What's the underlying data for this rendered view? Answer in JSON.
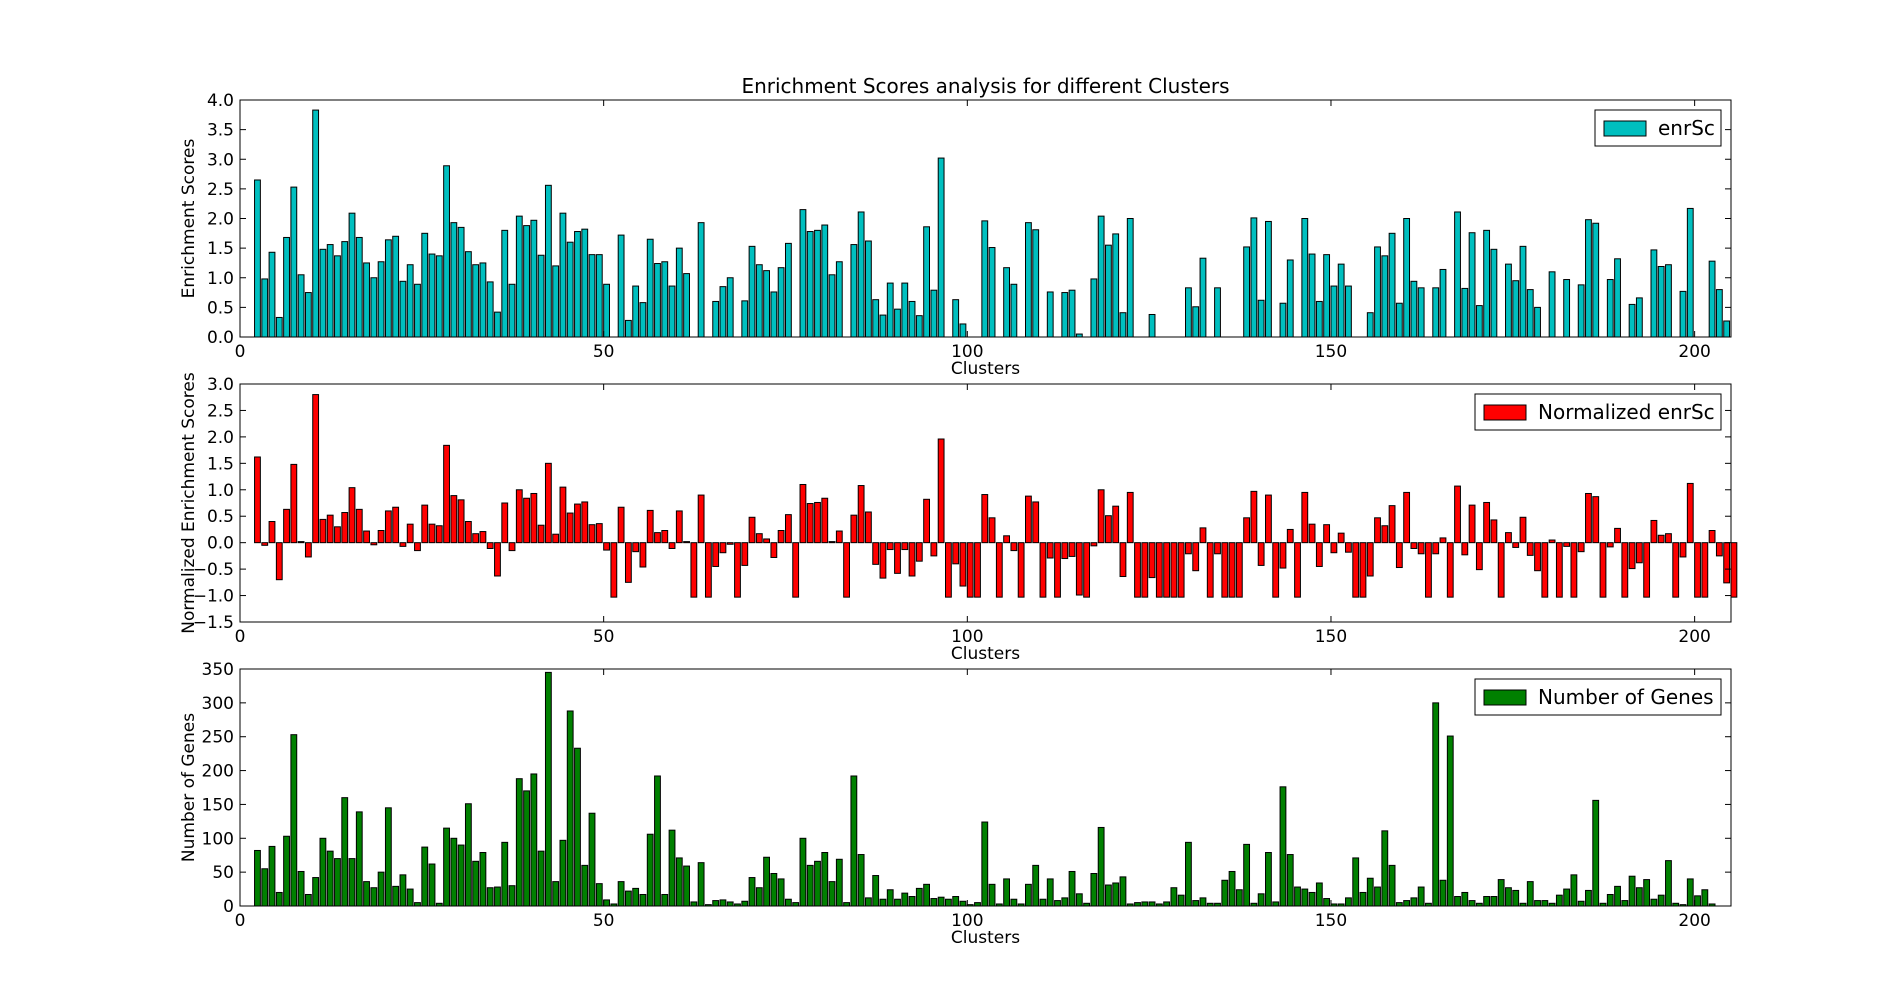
{
  "chart_data": [
    {
      "type": "bar",
      "title": "Enrichment Scores analysis for different Clusters",
      "xlabel": "Clusters",
      "ylabel": "Enrichment Scores",
      "legend": {
        "label": "enrSc",
        "placement": "top-right"
      },
      "color": "#00bfbf",
      "xlim": [
        0,
        205
      ],
      "ylim": [
        0,
        4.0
      ],
      "xticks": [
        0,
        50,
        100,
        150,
        200
      ],
      "yticks": [
        0.0,
        0.5,
        1.0,
        1.5,
        2.0,
        2.5,
        3.0,
        3.5,
        4.0
      ],
      "xtick_labels": [
        "0",
        "50",
        "100",
        "150",
        "200"
      ],
      "ytick_labels": [
        "0.0",
        "0.5",
        "1.0",
        "1.5",
        "2.0",
        "2.5",
        "3.0",
        "3.5",
        "4.0"
      ],
      "bar_start": 2,
      "values": [
        2.65,
        0.98,
        1.43,
        0.33,
        1.68,
        2.53,
        1.05,
        0.75,
        3.83,
        1.48,
        1.56,
        1.37,
        1.61,
        2.09,
        1.68,
        1.25,
        1.0,
        1.27,
        1.64,
        1.7,
        0.94,
        1.22,
        0.89,
        1.75,
        1.4,
        1.37,
        2.89,
        1.93,
        1.85,
        1.44,
        1.22,
        1.25,
        0.93,
        0.42,
        1.8,
        0.89,
        2.04,
        1.88,
        1.97,
        1.38,
        2.56,
        1.2,
        2.09,
        1.6,
        1.78,
        1.82,
        1.39,
        1.39,
        0.89,
        0,
        1.72,
        0.28,
        0.86,
        0.58,
        1.65,
        1.24,
        1.27,
        0.86,
        1.5,
        1.07,
        0,
        1.93,
        0,
        0.6,
        0.85,
        1.0,
        0,
        0.61,
        1.53,
        1.22,
        1.12,
        0.76,
        1.17,
        1.58,
        0,
        2.15,
        1.78,
        1.8,
        1.89,
        1.05,
        1.27,
        0,
        1.56,
        2.11,
        1.62,
        0.63,
        0.37,
        0.91,
        0.47,
        0.91,
        0.6,
        0.36,
        1.86,
        0.79,
        3.02,
        0,
        0.63,
        0.22,
        0,
        0,
        1.96,
        1.51,
        0,
        1.17,
        0.89,
        0,
        1.93,
        1.81,
        0,
        0.76,
        0,
        0.75,
        0.79,
        0.05,
        0,
        0.98,
        2.04,
        1.55,
        1.74,
        0.41,
        2.0,
        0,
        0,
        0.38,
        0,
        0,
        0,
        0,
        0.83,
        0.51,
        1.33,
        0,
        0.83,
        0,
        0,
        0,
        1.52,
        2.01,
        0.62,
        1.95,
        0,
        0.57,
        1.3,
        0,
        2.0,
        1.4,
        0.6,
        1.39,
        0.86,
        1.23,
        0.86,
        0,
        0,
        0.41,
        1.52,
        1.37,
        1.75,
        0.57,
        2.0,
        0.94,
        0.83,
        0,
        0.83,
        1.14,
        0,
        2.11,
        0.82,
        1.76,
        0.53,
        1.8,
        1.48,
        0,
        1.23,
        0.95,
        1.53,
        0.8,
        0.5,
        0,
        1.1,
        0,
        0.97,
        0,
        0.88,
        1.98,
        1.92,
        0,
        0.97,
        1.32,
        0,
        0.55,
        0.66,
        0,
        1.47,
        1.19,
        1.22,
        0,
        0.77,
        2.17,
        0,
        0,
        1.28,
        0.8,
        0.27
      ]
    },
    {
      "type": "bar",
      "title": "",
      "xlabel": "Clusters",
      "ylabel": "Normalized Enrichment Scores",
      "legend": {
        "label": "Normalized enrSc",
        "placement": "top-right"
      },
      "color": "#ff0000",
      "xlim": [
        0,
        205
      ],
      "ylim": [
        -1.5,
        3.0
      ],
      "xticks": [
        0,
        50,
        100,
        150,
        200
      ],
      "yticks": [
        -1.5,
        -1.0,
        -0.5,
        0.0,
        0.5,
        1.0,
        1.5,
        2.0,
        2.5,
        3.0
      ],
      "xtick_labels": [
        "0",
        "50",
        "100",
        "150",
        "200"
      ],
      "ytick_labels": [
        "−1.5",
        "−1.0",
        "−0.5",
        "0.0",
        "0.5",
        "1.0",
        "1.5",
        "2.0",
        "2.5",
        "3.0"
      ],
      "bar_start": 2,
      "values": [
        1.62,
        -0.05,
        0.4,
        -0.7,
        0.63,
        1.48,
        0.02,
        -0.27,
        2.8,
        0.44,
        0.52,
        0.3,
        0.57,
        1.04,
        0.63,
        0.22,
        -0.04,
        0.23,
        0.6,
        0.67,
        -0.07,
        0.35,
        -0.15,
        0.71,
        0.35,
        0.32,
        1.84,
        0.89,
        0.81,
        0.4,
        0.17,
        0.21,
        -0.11,
        -0.63,
        0.75,
        -0.15,
        1.0,
        0.84,
        0.93,
        0.33,
        1.5,
        0.16,
        1.05,
        0.56,
        0.73,
        0.77,
        0.34,
        0.36,
        -0.14,
        -1.03,
        0.67,
        -0.75,
        -0.17,
        -0.46,
        0.61,
        0.19,
        0.23,
        -0.11,
        0.6,
        0.02,
        -1.03,
        0.9,
        -1.03,
        -0.45,
        -0.19,
        -0.03,
        -1.03,
        -0.43,
        0.48,
        0.17,
        0.07,
        -0.28,
        0.23,
        0.53,
        -1.03,
        1.1,
        0.74,
        0.76,
        0.84,
        0.02,
        0.22,
        -1.03,
        0.52,
        1.08,
        0.58,
        -0.41,
        -0.67,
        -0.13,
        -0.58,
        -0.13,
        -0.63,
        -0.35,
        0.82,
        -0.25,
        1.96,
        -1.03,
        -0.4,
        -0.82,
        -1.03,
        -1.03,
        0.91,
        0.47,
        -1.03,
        0.13,
        -0.15,
        -1.03,
        0.88,
        0.77,
        -1.03,
        -0.29,
        -1.03,
        -0.3,
        -0.26,
        -0.99,
        -1.03,
        -0.06,
        1.0,
        0.51,
        0.69,
        -0.64,
        0.95,
        -1.03,
        -1.03,
        -0.66,
        -1.03,
        -1.03,
        -1.03,
        -1.03,
        -0.21,
        -0.53,
        0.28,
        -1.03,
        -0.21,
        -1.03,
        -1.03,
        -1.03,
        0.47,
        0.97,
        -0.43,
        0.9,
        -1.03,
        -0.48,
        0.25,
        -1.03,
        0.95,
        0.35,
        -0.45,
        0.34,
        -0.19,
        0.18,
        -0.18,
        -1.03,
        -1.03,
        -0.63,
        0.47,
        0.32,
        0.7,
        -0.47,
        0.95,
        -0.11,
        -0.21,
        -1.03,
        -0.21,
        0.09,
        -1.03,
        1.07,
        -0.23,
        0.71,
        -0.51,
        0.76,
        0.43,
        -1.03,
        0.19,
        -0.09,
        0.48,
        -0.24,
        -0.53,
        -1.03,
        0.05,
        -1.03,
        -0.07,
        -1.03,
        -0.17,
        0.93,
        0.87,
        -1.03,
        -0.08,
        0.27,
        -1.03,
        -0.49,
        -0.38,
        -1.03,
        0.42,
        0.14,
        0.17,
        -1.03,
        -0.27,
        1.12,
        -1.03,
        -1.03,
        0.23,
        -0.25,
        -0.76,
        -1.03
      ]
    },
    {
      "type": "bar",
      "title": "",
      "xlabel": "Clusters",
      "ylabel": "Number of Genes",
      "legend": {
        "label": "Number of Genes",
        "placement": "top-right"
      },
      "color": "#008000",
      "xlim": [
        0,
        205
      ],
      "ylim": [
        0,
        350
      ],
      "xticks": [
        0,
        50,
        100,
        150,
        200
      ],
      "yticks": [
        0,
        50,
        100,
        150,
        200,
        250,
        300,
        350
      ],
      "xtick_labels": [
        "0",
        "50",
        "100",
        "150",
        "200"
      ],
      "ytick_labels": [
        "0",
        "50",
        "100",
        "150",
        "200",
        "250",
        "300",
        "350"
      ],
      "bar_start": 2,
      "values": [
        82,
        55,
        88,
        20,
        103,
        253,
        51,
        17,
        42,
        100,
        81,
        70,
        160,
        70,
        139,
        36,
        27,
        50,
        145,
        29,
        46,
        25,
        5,
        87,
        62,
        4,
        115,
        100,
        90,
        151,
        66,
        79,
        27,
        28,
        94,
        30,
        188,
        170,
        195,
        81,
        345,
        36,
        97,
        288,
        233,
        60,
        137,
        33,
        9,
        3,
        36,
        22,
        26,
        17,
        106,
        192,
        17,
        112,
        71,
        59,
        6,
        64,
        2,
        8,
        9,
        6,
        3,
        7,
        42,
        27,
        72,
        48,
        40,
        10,
        5,
        100,
        60,
        66,
        79,
        36,
        69,
        5,
        192,
        76,
        12,
        45,
        10,
        24,
        10,
        19,
        14,
        26,
        32,
        11,
        13,
        10,
        14,
        7,
        2,
        5,
        124,
        32,
        3,
        40,
        10,
        3,
        32,
        60,
        10,
        40,
        8,
        12,
        51,
        18,
        4,
        48,
        116,
        31,
        34,
        43,
        3,
        5,
        6,
        6,
        3,
        6,
        27,
        16,
        94,
        8,
        12,
        4,
        4,
        38,
        51,
        24,
        91,
        4,
        18,
        79,
        6,
        176,
        76,
        28,
        25,
        20,
        34,
        11,
        3,
        3,
        12,
        71,
        20,
        41,
        28,
        111,
        60,
        5,
        8,
        12,
        28,
        4,
        300,
        38,
        251,
        14,
        20,
        8,
        4,
        14,
        14,
        39,
        27,
        23,
        4,
        36,
        8,
        8,
        4,
        16,
        25,
        46,
        7,
        23,
        156,
        4,
        17,
        29,
        8,
        44,
        27,
        39,
        10,
        16,
        67,
        4,
        2,
        40,
        15,
        24,
        3
      ]
    }
  ]
}
